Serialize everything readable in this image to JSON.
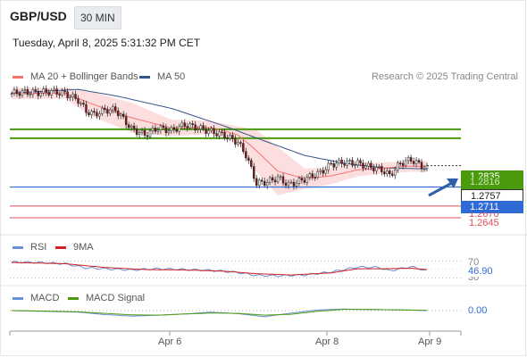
{
  "header": {
    "symbol": "GBP/USD",
    "timeframe": "30 MIN",
    "datetime": "Tuesday, April 8, 2025 5:31:32 PM CET",
    "credit": "Research © 2025 Trading Central"
  },
  "legend": {
    "ma20": "MA 20 + Bollinger Bands",
    "ma50": "MA 50",
    "rsi": "RSI",
    "ma9": "9MA",
    "macd": "MACD",
    "macd_signal": "MACD Signal"
  },
  "colors": {
    "ma20": "#f87171",
    "band": "#fbd3d3",
    "ma50": "#35558a",
    "up": "#ffffff",
    "down": "#8a1414",
    "green_line": "#4b9a0e",
    "blue_line": "#2f6bd6",
    "red_line": "#e0505a",
    "rsi": "#6a8fd8",
    "rsi_ma": "#d21f1f",
    "macd": "#6a8fd8",
    "macd_signal": "#4b9a0e"
  },
  "price_labels": {
    "target_top": "1.2835",
    "target_hidden": "1.2816",
    "current": "1.2757",
    "pivot": "1.2711",
    "support1": "1.2670",
    "support2": "1.2645"
  },
  "indicator_labels": {
    "rsi_70": "70",
    "rsi_value": "46.90",
    "rsi_30": "30",
    "macd_value": "0.00"
  },
  "x_axis": {
    "ticks": [
      "Apr 6",
      "Apr 8",
      "Apr 9"
    ]
  },
  "chart_data": {
    "type": "candlestick",
    "title": "GBP/USD",
    "ylim": [
      1.262,
      1.2925
    ],
    "levels": [
      {
        "value": 1.2835,
        "role": "resistance"
      },
      {
        "value": 1.2816,
        "role": "resistance"
      },
      {
        "value": 1.2711,
        "role": "pivot"
      },
      {
        "value": 1.267,
        "role": "support"
      },
      {
        "value": 1.2645,
        "role": "support"
      }
    ],
    "close_anchors": [
      [
        0,
        1.2912
      ],
      [
        4,
        1.2915
      ],
      [
        10,
        1.2914
      ],
      [
        15,
        1.2916
      ],
      [
        20,
        1.2912
      ],
      [
        25,
        1.2898
      ],
      [
        28,
        1.2874
      ],
      [
        31,
        1.2867
      ],
      [
        35,
        1.2876
      ],
      [
        39,
        1.2877
      ],
      [
        42,
        1.2857
      ],
      [
        45,
        1.2836
      ],
      [
        50,
        1.2823
      ],
      [
        55,
        1.2838
      ],
      [
        60,
        1.2832
      ],
      [
        65,
        1.2845
      ],
      [
        70,
        1.2838
      ],
      [
        75,
        1.283
      ],
      [
        80,
        1.2822
      ],
      [
        85,
        1.2807
      ],
      [
        88,
        1.278
      ],
      [
        92,
        1.2719
      ],
      [
        96,
        1.2722
      ],
      [
        100,
        1.2731
      ],
      [
        104,
        1.2716
      ],
      [
        108,
        1.2723
      ],
      [
        112,
        1.2733
      ],
      [
        116,
        1.2742
      ],
      [
        120,
        1.276
      ],
      [
        125,
        1.2764
      ],
      [
        130,
        1.2762
      ],
      [
        134,
        1.2755
      ],
      [
        139,
        1.2748
      ],
      [
        142,
        1.2736
      ],
      [
        146,
        1.2762
      ],
      [
        150,
        1.277
      ],
      [
        153,
        1.276
      ],
      [
        156,
        1.275
      ]
    ],
    "ma20_anchors": [
      [
        0,
        1.2912
      ],
      [
        20,
        1.2913
      ],
      [
        30,
        1.289
      ],
      [
        45,
        1.286
      ],
      [
        60,
        1.2838
      ],
      [
        75,
        1.2839
      ],
      [
        85,
        1.2823
      ],
      [
        92,
        1.2789
      ],
      [
        100,
        1.2745
      ],
      [
        110,
        1.2729
      ],
      [
        120,
        1.2735
      ],
      [
        130,
        1.2748
      ],
      [
        140,
        1.2752
      ],
      [
        150,
        1.2756
      ],
      [
        156,
        1.2755
      ]
    ],
    "band_half_anchors": [
      [
        0,
        0.0012
      ],
      [
        20,
        0.0012
      ],
      [
        30,
        0.0026
      ],
      [
        45,
        0.0032
      ],
      [
        60,
        0.0018
      ],
      [
        75,
        0.0014
      ],
      [
        85,
        0.0018
      ],
      [
        92,
        0.0045
      ],
      [
        100,
        0.0052
      ],
      [
        110,
        0.0022
      ],
      [
        120,
        0.0018
      ],
      [
        130,
        0.0014
      ],
      [
        140,
        0.0012
      ],
      [
        156,
        0.0012
      ]
    ],
    "ma50_anchors": [
      [
        0,
        1.2913
      ],
      [
        25,
        1.2921
      ],
      [
        40,
        1.2906
      ],
      [
        60,
        1.288
      ],
      [
        80,
        1.2842
      ],
      [
        95,
        1.281
      ],
      [
        110,
        1.2779
      ],
      [
        125,
        1.2762
      ],
      [
        140,
        1.2752
      ],
      [
        156,
        1.275
      ]
    ],
    "rsi": {
      "ylim": [
        20,
        80
      ],
      "levels": [
        70,
        30
      ],
      "anchors": [
        [
          0,
          68
        ],
        [
          10,
          67
        ],
        [
          20,
          64
        ],
        [
          28,
          54
        ],
        [
          35,
          52
        ],
        [
          45,
          49
        ],
        [
          55,
          52
        ],
        [
          65,
          50
        ],
        [
          75,
          48
        ],
        [
          85,
          43
        ],
        [
          92,
          36
        ],
        [
          100,
          35
        ],
        [
          110,
          37
        ],
        [
          120,
          44
        ],
        [
          130,
          56
        ],
        [
          138,
          55
        ],
        [
          142,
          47
        ],
        [
          150,
          57
        ],
        [
          156,
          46.9
        ]
      ],
      "ma_anchors": [
        [
          0,
          67
        ],
        [
          20,
          64
        ],
        [
          35,
          55
        ],
        [
          50,
          50
        ],
        [
          65,
          49
        ],
        [
          80,
          46
        ],
        [
          92,
          40
        ],
        [
          105,
          37
        ],
        [
          120,
          42
        ],
        [
          130,
          52
        ],
        [
          140,
          52
        ],
        [
          150,
          53
        ],
        [
          156,
          50
        ]
      ]
    },
    "macd": {
      "ylim": [
        -0.0035,
        0.0035
      ],
      "zero": 0.0,
      "anchors": [
        [
          0,
          0.0
        ],
        [
          15,
          -0.0003
        ],
        [
          25,
          -0.0005
        ],
        [
          35,
          -0.0013
        ],
        [
          45,
          -0.0018
        ],
        [
          55,
          -0.0015
        ],
        [
          65,
          -0.0011
        ],
        [
          75,
          -0.0005
        ],
        [
          85,
          -0.001
        ],
        [
          95,
          -0.002
        ],
        [
          105,
          -0.0008
        ],
        [
          115,
          0.0002
        ],
        [
          125,
          0.0005
        ],
        [
          135,
          0.0003
        ],
        [
          145,
          0.0003
        ],
        [
          156,
          0.0
        ]
      ],
      "signal_anchors": [
        [
          0,
          0.0
        ],
        [
          15,
          -0.0002
        ],
        [
          25,
          -0.0004
        ],
        [
          35,
          -0.0009
        ],
        [
          45,
          -0.0014
        ],
        [
          55,
          -0.0015
        ],
        [
          65,
          -0.0011
        ],
        [
          75,
          -0.0008
        ],
        [
          85,
          -0.0009
        ],
        [
          95,
          -0.0015
        ],
        [
          105,
          -0.0012
        ],
        [
          115,
          -0.0002
        ],
        [
          125,
          0.0004
        ],
        [
          135,
          0.0004
        ],
        [
          145,
          0.0002
        ],
        [
          156,
          0.0001
        ]
      ]
    }
  }
}
